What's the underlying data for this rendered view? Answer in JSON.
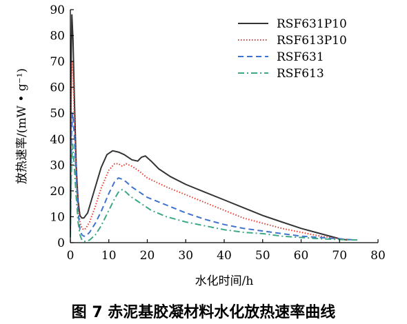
{
  "chart_data": {
    "type": "line",
    "title": "",
    "caption": "图 7    赤泥基胶凝材料水化放热速率曲线",
    "xlabel": "水化时间/h",
    "ylabel": "放热速率/(mW • g⁻¹)",
    "xlim": [
      0,
      80
    ],
    "ylim": [
      0,
      90
    ],
    "xticks": [
      0,
      10,
      20,
      30,
      40,
      50,
      60,
      70,
      80
    ],
    "yticks": [
      0,
      10,
      20,
      30,
      40,
      50,
      60,
      70,
      80,
      90
    ],
    "grid": false,
    "legend_position": "top-right",
    "series": [
      {
        "name": "RSF631P10",
        "color": "#333333",
        "dash": "solid",
        "x": [
          0,
          0.2,
          0.4,
          0.7,
          1.0,
          1.5,
          2.0,
          2.5,
          3.0,
          3.5,
          4.5,
          6,
          8,
          9.5,
          11,
          12.5,
          14,
          16,
          17.5,
          18.5,
          19.5,
          21,
          23,
          26,
          30,
          35,
          40,
          45,
          50,
          55,
          60,
          65,
          70,
          72
        ],
        "y": [
          5,
          70,
          88,
          78,
          58,
          30,
          16,
          10.5,
          9.5,
          9.5,
          11.5,
          19,
          29,
          34,
          35.5,
          35,
          34,
          32,
          31.5,
          33,
          33.5,
          31.5,
          28.5,
          25.5,
          22.5,
          19.5,
          16.5,
          13.5,
          10.5,
          8,
          5.5,
          3.5,
          1.5,
          1
        ]
      },
      {
        "name": "RSF613P10",
        "color": "#e8372a",
        "dash": "dotted",
        "x": [
          0,
          0.2,
          0.4,
          0.7,
          1.0,
          1.5,
          2.0,
          2.5,
          3.0,
          3.5,
          4.0,
          5,
          6.5,
          8,
          10,
          11.5,
          12.5,
          13.5,
          14.5,
          16,
          18,
          20,
          25,
          30,
          35,
          40,
          45,
          50,
          55,
          60,
          65,
          70,
          73
        ],
        "y": [
          4,
          55,
          70,
          64,
          50,
          28,
          14,
          8,
          5.5,
          5,
          5.5,
          8,
          14,
          21,
          28,
          30.5,
          30.5,
          29.5,
          30.5,
          29.5,
          27.5,
          25,
          21.5,
          18.5,
          15.5,
          12.5,
          9.5,
          7.5,
          5.5,
          4,
          2.5,
          1.5,
          1
        ]
      },
      {
        "name": "RSF631",
        "color": "#3f71cf",
        "dash": "dashed",
        "x": [
          0,
          0.3,
          0.6,
          1.0,
          1.5,
          2.0,
          2.5,
          3.0,
          3.5,
          4.0,
          5,
          6.5,
          8,
          10,
          11.5,
          12.5,
          13.5,
          14.5,
          16,
          18,
          20,
          25,
          30,
          35,
          40,
          45,
          50,
          55,
          60,
          65,
          70,
          74
        ],
        "y": [
          3,
          42,
          50,
          42,
          26,
          12,
          5,
          3,
          2.5,
          2.5,
          4,
          7.5,
          12,
          19,
          23.5,
          25,
          24.5,
          23.5,
          21.5,
          19.5,
          17.5,
          14.5,
          11.5,
          9,
          7,
          5.5,
          4.5,
          3.5,
          2.5,
          2,
          1.5,
          1
        ]
      },
      {
        "name": "RSF613",
        "color": "#3ca882",
        "dash": "dashdot",
        "x": [
          0,
          0.3,
          0.6,
          1.0,
          1.5,
          2.0,
          2.5,
          3.0,
          3.5,
          4.0,
          5,
          6.5,
          8,
          10,
          11.5,
          12.5,
          13.5,
          14.5,
          15.5,
          17,
          19,
          21,
          25,
          30,
          35,
          40,
          45,
          50,
          55,
          60,
          65,
          70,
          75
        ],
        "y": [
          2,
          30,
          38,
          30,
          18,
          8,
          3,
          1,
          0.5,
          0.5,
          1,
          3,
          6.5,
          12.5,
          17,
          19.5,
          20.5,
          19.5,
          18,
          16.5,
          14.5,
          12.5,
          10,
          8,
          6.5,
          5,
          4,
          3.5,
          2.5,
          2,
          1.5,
          1.2,
          1
        ]
      }
    ]
  }
}
